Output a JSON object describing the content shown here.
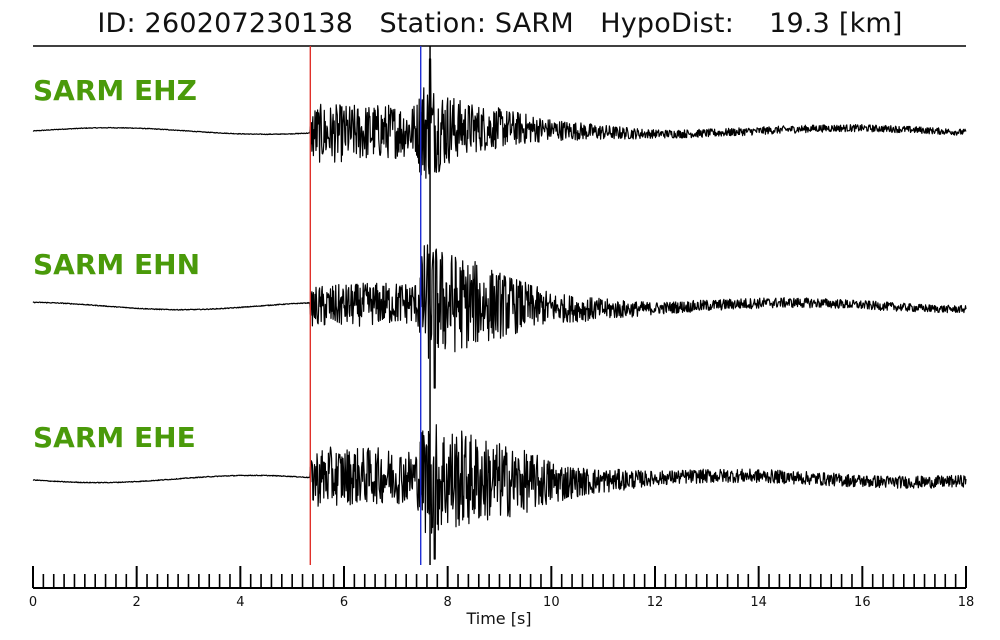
{
  "header": {
    "title": "ID: 260207230138   Station: SARM   HypoDist:    19.3 [km]"
  },
  "colors": {
    "label": "#4a9a0a",
    "trace": "#000000",
    "p_pick": "#e0302a",
    "s_pick": "#1f2fd6",
    "pick_marker": "#000000"
  },
  "chart_data": {
    "type": "line",
    "title": "ID: 260207230138   Station: SARM   HypoDist:    19.3 [km]",
    "xlabel": "Time [s]",
    "ylabel": "",
    "xlim": [
      0,
      18
    ],
    "x_ticks": [
      "0",
      "2",
      "4",
      "6",
      "8",
      "10",
      "12",
      "14",
      "16",
      "18"
    ],
    "minor_tick_step": 0.2,
    "grid": false,
    "legend": "none",
    "picks": [
      {
        "label": "",
        "time": 5.35,
        "color": "#e0302a"
      },
      {
        "label": "",
        "time": 7.48,
        "color": "#1f2fd6"
      },
      {
        "label": "",
        "time": 7.66,
        "color": "#000000"
      }
    ],
    "series": [
      {
        "name": "SARM EHZ",
        "envelope": [
          [
            0,
            0.02
          ],
          [
            5.33,
            0.05
          ],
          [
            5.4,
            0.55
          ],
          [
            7.4,
            0.5
          ],
          [
            7.5,
            1.0
          ],
          [
            8.3,
            0.5
          ],
          [
            10,
            0.2
          ],
          [
            12,
            0.08
          ],
          [
            18,
            0.06
          ]
        ],
        "peak": {
          "time": 7.66,
          "value": 1.0
        }
      },
      {
        "name": "SARM EHN",
        "envelope": [
          [
            0,
            0.02
          ],
          [
            5.33,
            0.04
          ],
          [
            5.4,
            0.35
          ],
          [
            7.4,
            0.35
          ],
          [
            7.55,
            1.0
          ],
          [
            9.0,
            0.55
          ],
          [
            10,
            0.25
          ],
          [
            12,
            0.1
          ],
          [
            18,
            0.06
          ]
        ],
        "peak": {
          "time": 7.75,
          "value": 1.0
        }
      },
      {
        "name": "SARM EHE",
        "envelope": [
          [
            0,
            0.02
          ],
          [
            5.33,
            0.04
          ],
          [
            5.4,
            0.5
          ],
          [
            7.4,
            0.45
          ],
          [
            7.55,
            1.0
          ],
          [
            9.2,
            0.6
          ],
          [
            10.5,
            0.25
          ],
          [
            12,
            0.12
          ],
          [
            18,
            0.1
          ]
        ],
        "peak": {
          "time": 7.75,
          "value": 1.0
        }
      }
    ]
  }
}
